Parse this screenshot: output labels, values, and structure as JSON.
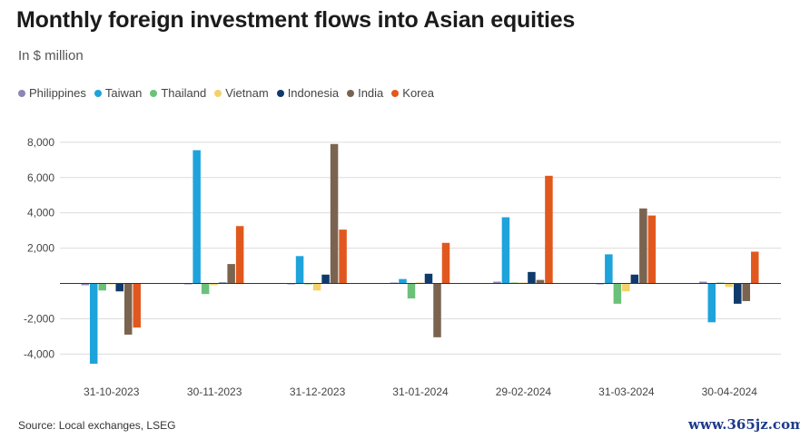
{
  "title": "Monthly foreign investment flows into Asian equities",
  "subtitle": "In $ million",
  "source": "Source: Local exchanges, LSEG",
  "watermark": "www.365jz.com",
  "chart_data": {
    "type": "bar",
    "categories": [
      "31-10-2023",
      "30-11-2023",
      "31-12-2023",
      "31-01-2024",
      "29-02-2024",
      "31-03-2024",
      "30-04-2024"
    ],
    "ylim": [
      -4600,
      8300
    ],
    "yticks": [
      8000,
      6000,
      4000,
      2000,
      0,
      -2000,
      -4000
    ],
    "ytick_labels": [
      "8,000",
      "6,000",
      "4,000",
      "2,000",
      "",
      "-2,000",
      "-4,000"
    ],
    "grid": true,
    "legend_position": "top-left",
    "series": [
      {
        "name": "Philippines",
        "color": "#8e86b6",
        "values": [
          -100,
          -50,
          -20,
          50,
          100,
          -30,
          100
        ]
      },
      {
        "name": "Taiwan",
        "color": "#1ea3db",
        "values": [
          -4550,
          7550,
          1550,
          250,
          3750,
          1650,
          -2200
        ]
      },
      {
        "name": "Thailand",
        "color": "#6cc17a",
        "values": [
          -400,
          -600,
          -50,
          -850,
          50,
          -1150,
          50
        ]
      },
      {
        "name": "Vietnam",
        "color": "#f4d26b",
        "values": [
          -50,
          -100,
          -400,
          50,
          50,
          -450,
          -200
        ]
      },
      {
        "name": "Indonesia",
        "color": "#0f3a6b",
        "values": [
          -450,
          50,
          500,
          550,
          650,
          500,
          -1150
        ]
      },
      {
        "name": "India",
        "color": "#7a6450",
        "values": [
          -2900,
          1100,
          7900,
          -3050,
          200,
          4250,
          -1000
        ]
      },
      {
        "name": "Korea",
        "color": "#e1581e",
        "values": [
          -2500,
          3250,
          3050,
          2300,
          6100,
          3850,
          1800
        ]
      }
    ]
  }
}
